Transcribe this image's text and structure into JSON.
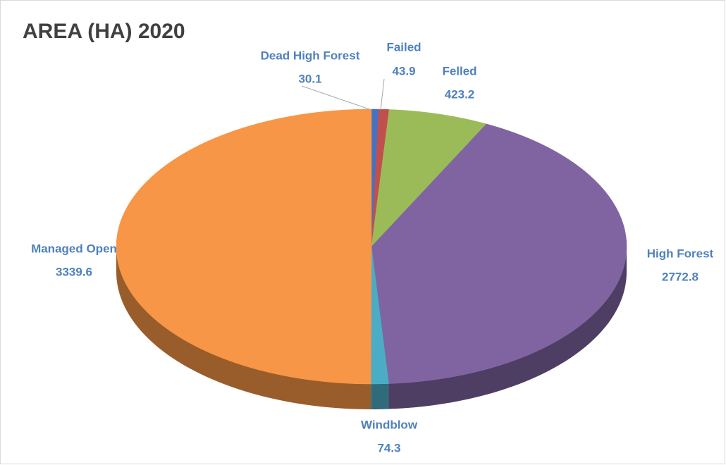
{
  "chart_data": {
    "type": "pie",
    "title": "AREA (HA) 2020",
    "categories": [
      "Dead High Forest",
      "Failed",
      "Felled",
      "High Forest",
      "Windblow",
      "Managed Open"
    ],
    "values": [
      30.1,
      43.9,
      423.2,
      2772.8,
      74.3,
      3339.6
    ],
    "colors": [
      "#4472c4",
      "#c0504d",
      "#9bbb59",
      "#8064a2",
      "#4bacc6",
      "#f79646"
    ]
  }
}
